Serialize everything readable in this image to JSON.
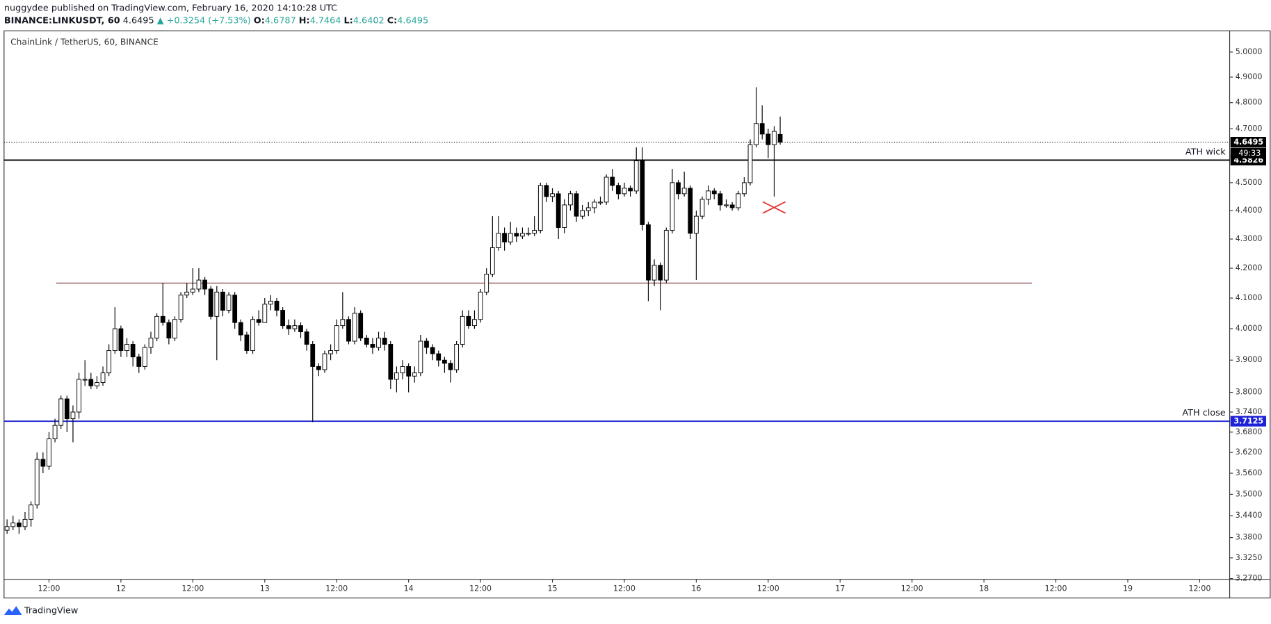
{
  "header": {
    "published": "nuggydee published on TradingView.com, February 16, 2020 14:10:28 UTC",
    "symbol": "BINANCE:LINKUSDT, 60",
    "price": "4.6495",
    "change": "▲ +0.3254 (+7.53%)",
    "ohlc": [
      {
        "label": "O:",
        "value": "4.6787"
      },
      {
        "label": "H:",
        "value": "4.7464"
      },
      {
        "label": "L:",
        "value": "4.6402"
      },
      {
        "label": "C:",
        "value": "4.6495"
      }
    ]
  },
  "footer": {
    "brand": "TradingView"
  },
  "chart_data": {
    "type": "candlestick",
    "title": "ChainLink / TetherUS, 60, BINANCE",
    "log_y": true,
    "up_color": "#ffffff",
    "down_color": "#000000",
    "wick_color": "#000000",
    "xlim": [
      -0.5,
      204
    ],
    "ylim": [
      3.268,
      5.086
    ],
    "xticks": [
      {
        "value": 7,
        "label": "12:00"
      },
      {
        "value": 19,
        "label": "12"
      },
      {
        "value": 31,
        "label": "12:00"
      },
      {
        "value": 43,
        "label": "13"
      },
      {
        "value": 55,
        "label": "12:00"
      },
      {
        "value": 67,
        "label": "14"
      },
      {
        "value": 79,
        "label": "12:00"
      },
      {
        "value": 91,
        "label": "15"
      },
      {
        "value": 103,
        "label": "12:00"
      },
      {
        "value": 115,
        "label": "16"
      },
      {
        "value": 127,
        "label": "12:00"
      },
      {
        "value": 139,
        "label": "17"
      },
      {
        "value": 151,
        "label": "12:00"
      },
      {
        "value": 163,
        "label": "18"
      },
      {
        "value": 175,
        "label": "12:00"
      },
      {
        "value": 187,
        "label": "19"
      },
      {
        "value": 199,
        "label": "12:00"
      }
    ],
    "yticks": [
      {
        "value": 5,
        "label": "5.0000"
      },
      {
        "value": 4.9,
        "label": "4.9000"
      },
      {
        "value": 4.8,
        "label": "4.8000"
      },
      {
        "value": 4.7,
        "label": "4.7000"
      },
      {
        "value": 4.5,
        "label": "4.5000"
      },
      {
        "value": 4.4,
        "label": "4.4000"
      },
      {
        "value": 4.3,
        "label": "4.3000"
      },
      {
        "value": 4.2,
        "label": "4.2000"
      },
      {
        "value": 4.1,
        "label": "4.1000"
      },
      {
        "value": 4,
        "label": "4.0000"
      },
      {
        "value": 3.9,
        "label": "3.9000"
      },
      {
        "value": 3.8,
        "label": "3.8000"
      },
      {
        "value": 3.74,
        "label": "3.7400"
      },
      {
        "value": 3.68,
        "label": "3.6800"
      },
      {
        "value": 3.62,
        "label": "3.6200"
      },
      {
        "value": 3.56,
        "label": "3.5600"
      },
      {
        "value": 3.5,
        "label": "3.5000"
      },
      {
        "value": 3.44,
        "label": "3.4400"
      },
      {
        "value": 3.38,
        "label": "3.3800"
      },
      {
        "value": 3.325,
        "label": "3.3250"
      },
      {
        "value": 3.27,
        "label": "3.2700"
      }
    ],
    "open": [
      3.4,
      3.41,
      3.42,
      3.41,
      3.43,
      3.47,
      3.6,
      3.58,
      3.66,
      3.7,
      3.78,
      3.72,
      3.74,
      3.84,
      3.84,
      3.82,
      3.83,
      3.86,
      3.93,
      4.0,
      3.93,
      3.95,
      3.91,
      3.88,
      3.94,
      3.97,
      4.04,
      4.02,
      3.97,
      4.03,
      4.11,
      4.12,
      4.13,
      4.16,
      4.13,
      4.04,
      4.12,
      4.06,
      4.11,
      4.02,
      3.98,
      3.93,
      4.03,
      4.02,
      4.08,
      4.09,
      4.06,
      4.01,
      4.0,
      4.01,
      3.99,
      3.95,
      3.88,
      3.87,
      3.92,
      3.93,
      4.01,
      4.03,
      3.96,
      4.05,
      3.97,
      3.95,
      3.94,
      3.97,
      3.95,
      3.84,
      3.86,
      3.88,
      3.85,
      3.86,
      3.96,
      3.94,
      3.92,
      3.9,
      3.89,
      3.87,
      3.95,
      4.04,
      4.01,
      4.03,
      4.12,
      4.18,
      4.27,
      4.32,
      4.29,
      4.32,
      4.31,
      4.32,
      4.32,
      4.33,
      4.49,
      4.45,
      4.46,
      4.34,
      4.42,
      4.46,
      4.38,
      4.4,
      4.41,
      4.43,
      4.43,
      4.52,
      4.49,
      4.46,
      4.48,
      4.47,
      4.58,
      4.35,
      4.16,
      4.21,
      4.16,
      4.33,
      4.5,
      4.46,
      4.48,
      4.32,
      4.38,
      4.44,
      4.47,
      4.46,
      4.42,
      4.42,
      4.41,
      4.46,
      4.5,
      4.64,
      4.72,
      4.68,
      4.64,
      4.6787
    ],
    "high": [
      3.43,
      3.44,
      3.43,
      3.45,
      3.48,
      3.62,
      3.62,
      3.68,
      3.72,
      3.79,
      3.79,
      3.76,
      3.86,
      3.9,
      3.86,
      3.85,
      3.88,
      3.95,
      4.07,
      4.01,
      3.97,
      3.96,
      3.92,
      3.95,
      3.99,
      4.05,
      4.15,
      4.03,
      4.04,
      4.12,
      4.15,
      4.2,
      4.2,
      4.17,
      4.14,
      4.14,
      4.13,
      4.12,
      4.12,
      4.03,
      3.99,
      4.04,
      4.06,
      4.1,
      4.11,
      4.1,
      4.07,
      4.03,
      4.03,
      4.02,
      4.0,
      3.96,
      3.89,
      3.93,
      3.95,
      4.03,
      4.12,
      4.04,
      4.07,
      4.06,
      3.98,
      3.97,
      3.99,
      3.99,
      3.96,
      3.88,
      3.9,
      3.89,
      3.88,
      3.98,
      3.97,
      3.95,
      3.93,
      3.91,
      3.9,
      3.96,
      4.06,
      4.06,
      4.06,
      4.13,
      4.2,
      4.38,
      4.38,
      4.34,
      4.36,
      4.34,
      4.34,
      4.34,
      4.38,
      4.5,
      4.5,
      4.48,
      4.47,
      4.44,
      4.47,
      4.47,
      4.42,
      4.43,
      4.44,
      4.45,
      4.53,
      4.55,
      4.5,
      4.5,
      4.49,
      4.63,
      4.63,
      4.36,
      4.23,
      4.22,
      4.34,
      4.55,
      4.51,
      4.54,
      4.49,
      4.4,
      4.45,
      4.49,
      4.48,
      4.47,
      4.44,
      4.43,
      4.47,
      4.52,
      4.66,
      4.86,
      4.79,
      4.7,
      4.71,
      4.7464
    ],
    "low": [
      3.39,
      3.4,
      3.39,
      3.4,
      3.41,
      3.46,
      3.56,
      3.57,
      3.65,
      3.69,
      3.68,
      3.65,
      3.72,
      3.82,
      3.81,
      3.81,
      3.82,
      3.85,
      3.92,
      3.91,
      3.91,
      3.88,
      3.86,
      3.87,
      3.92,
      3.96,
      4.01,
      3.95,
      3.96,
      4.02,
      4.1,
      4.11,
      4.12,
      4.11,
      4.03,
      3.9,
      4.04,
      4.05,
      4.0,
      3.96,
      3.92,
      3.92,
      4.01,
      4.02,
      4.06,
      4.04,
      4.0,
      3.98,
      3.99,
      3.97,
      3.93,
      3.71,
      3.85,
      3.86,
      3.9,
      3.92,
      4.0,
      3.95,
      3.95,
      3.96,
      3.94,
      3.92,
      3.93,
      3.93,
      3.81,
      3.8,
      3.84,
      3.8,
      3.83,
      3.85,
      3.92,
      3.9,
      3.88,
      3.86,
      3.83,
      3.86,
      3.94,
      4.0,
      4.0,
      4.02,
      4.11,
      4.17,
      4.26,
      4.26,
      4.28,
      4.29,
      4.3,
      4.31,
      4.31,
      4.32,
      4.43,
      4.43,
      4.3,
      4.32,
      4.4,
      4.36,
      4.37,
      4.38,
      4.39,
      4.42,
      4.42,
      4.47,
      4.44,
      4.45,
      4.45,
      4.46,
      4.33,
      4.09,
      4.14,
      4.06,
      4.15,
      4.32,
      4.44,
      4.45,
      4.3,
      4.16,
      4.37,
      4.42,
      4.44,
      4.4,
      4.41,
      4.4,
      4.4,
      4.45,
      4.49,
      4.63,
      4.66,
      4.59,
      4.45,
      4.6402
    ],
    "close": [
      3.41,
      3.42,
      3.41,
      3.43,
      3.47,
      3.6,
      3.58,
      3.66,
      3.7,
      3.78,
      3.72,
      3.74,
      3.84,
      3.84,
      3.82,
      3.83,
      3.86,
      3.93,
      4.0,
      3.93,
      3.95,
      3.91,
      3.88,
      3.94,
      3.97,
      4.04,
      4.02,
      3.97,
      4.03,
      4.11,
      4.12,
      4.13,
      4.16,
      4.13,
      4.04,
      4.12,
      4.06,
      4.11,
      4.02,
      3.98,
      3.93,
      4.03,
      4.02,
      4.08,
      4.09,
      4.06,
      4.01,
      4.0,
      4.01,
      3.99,
      3.95,
      3.88,
      3.87,
      3.92,
      3.93,
      4.01,
      4.03,
      3.96,
      4.05,
      3.97,
      3.95,
      3.94,
      3.97,
      3.95,
      3.84,
      3.86,
      3.88,
      3.85,
      3.86,
      3.96,
      3.94,
      3.92,
      3.9,
      3.89,
      3.87,
      3.95,
      4.04,
      4.01,
      4.03,
      4.12,
      4.18,
      4.27,
      4.32,
      4.29,
      4.32,
      4.31,
      4.32,
      4.32,
      4.33,
      4.49,
      4.45,
      4.46,
      4.34,
      4.42,
      4.46,
      4.38,
      4.4,
      4.41,
      4.43,
      4.43,
      4.52,
      4.49,
      4.46,
      4.48,
      4.47,
      4.58,
      4.35,
      4.16,
      4.21,
      4.16,
      4.33,
      4.5,
      4.46,
      4.48,
      4.32,
      4.38,
      4.44,
      4.47,
      4.46,
      4.42,
      4.42,
      4.41,
      4.46,
      4.5,
      4.64,
      4.72,
      4.68,
      4.64,
      4.69,
      4.6495
    ],
    "last_price": 4.6495,
    "last_price_color": "#000000",
    "countdown": "49:33",
    "levels": [
      {
        "name": "ATH wick",
        "value": 4.5826,
        "color": "#000000"
      },
      {
        "name": "ATH close",
        "value": 3.7125,
        "color": "#1e22d6"
      },
      {
        "value": 4.15,
        "color": "#8b4b4b",
        "x_range": [
          8.2,
          171
        ]
      }
    ]
  }
}
